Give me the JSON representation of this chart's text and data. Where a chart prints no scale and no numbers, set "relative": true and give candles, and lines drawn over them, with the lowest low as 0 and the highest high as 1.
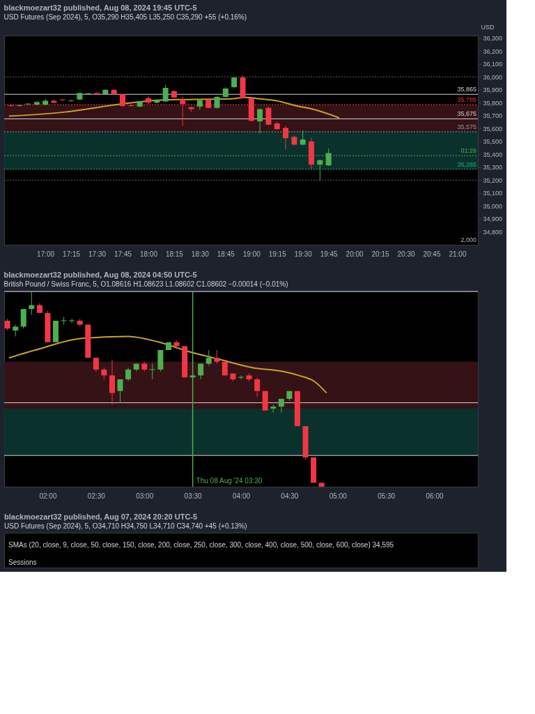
{
  "chart_data": [
    {
      "type": "candlestick",
      "title": "blackmoezart32 published, Aug 08, 2024 19:45 UTC-5",
      "subtitle": "USD Futures (Sep 2024), 5,  O35,290 H35,405 L35,250 C35,290 +55 (+0.16%)",
      "x": [
        16.667,
        16.75,
        16.833,
        16.917,
        17,
        17.083,
        17.167,
        17.25,
        17.333,
        17.417,
        17.5,
        17.583,
        17.667,
        17.75,
        17.833,
        17.917,
        18,
        18.083,
        18.167,
        18.25,
        18.333,
        18.417,
        18.5,
        18.583,
        18.667,
        18.75,
        18.833,
        18.917,
        19,
        19.083,
        19.167,
        19.25,
        19.333,
        19.417,
        19.5,
        19.583,
        19.667,
        19.75
      ],
      "ohlc": [
        [
          35780,
          35785,
          35770,
          35775
        ],
        [
          35775,
          35785,
          35770,
          35780
        ],
        [
          35790,
          35795,
          35785,
          35790
        ],
        [
          35785,
          35810,
          35780,
          35805
        ],
        [
          35785,
          35830,
          35780,
          35815
        ],
        [
          35815,
          35825,
          35795,
          35800
        ],
        [
          35825,
          35830,
          35815,
          35820
        ],
        [
          35815,
          35820,
          35810,
          35815
        ],
        [
          35825,
          35880,
          35820,
          35875
        ],
        [
          35870,
          35875,
          35865,
          35870
        ],
        [
          35875,
          35880,
          35860,
          35865
        ],
        [
          35865,
          35905,
          35860,
          35900
        ],
        [
          35900,
          35905,
          35860,
          35865
        ],
        [
          35865,
          35870,
          35765,
          35775
        ],
        [
          35780,
          35785,
          35770,
          35775
        ],
        [
          35770,
          35815,
          35765,
          35810
        ],
        [
          35835,
          35850,
          35790,
          35800
        ],
        [
          35800,
          35825,
          35795,
          35820
        ],
        [
          35810,
          35940,
          35805,
          35915
        ],
        [
          35890,
          35895,
          35835,
          35840
        ],
        [
          35825,
          35845,
          35620,
          35790
        ],
        [
          35765,
          35770,
          35730,
          35750
        ],
        [
          35770,
          35825,
          35745,
          35820
        ],
        [
          35825,
          35830,
          35755,
          35760
        ],
        [
          35760,
          35850,
          35755,
          35845
        ],
        [
          35845,
          35920,
          35840,
          35910
        ],
        [
          35920,
          36000,
          35915,
          35995
        ],
        [
          35995,
          36010,
          35830,
          35835
        ],
        [
          35835,
          35845,
          35655,
          35660
        ],
        [
          35655,
          35755,
          35560,
          35750
        ],
        [
          35760,
          35770,
          35625,
          35630
        ],
        [
          35640,
          35650,
          35590,
          35595
        ],
        [
          35605,
          35620,
          35435,
          35525
        ],
        [
          35535,
          35545,
          35470,
          35475
        ],
        [
          35475,
          35585,
          35470,
          35515
        ],
        [
          35500,
          35530,
          35290,
          35320
        ],
        [
          35320,
          35360,
          35200,
          35355
        ],
        [
          35315,
          35445,
          35310,
          35410
        ]
      ],
      "series": [
        {
          "type": "line",
          "color": "#c9a227",
          "x": [
            16.647,
            17.192,
            17.769,
            18.154,
            18.474,
            18.795,
            18.955,
            19.083,
            19.244,
            19.436,
            19.596,
            19.853
          ],
          "values": [
            35696,
            35728,
            35793,
            35822,
            35826,
            35830,
            35841,
            35830,
            35815,
            35776,
            35750,
            35683
          ]
        }
      ],
      "xlim": [
        16.6,
        21.2
      ],
      "xticks": [
        {
          "value": 17,
          "label": "17:00"
        },
        {
          "value": 17.25,
          "label": "17:15"
        },
        {
          "value": 17.5,
          "label": "17:30"
        },
        {
          "value": 17.75,
          "label": "17:45"
        },
        {
          "value": 18,
          "label": "18:00"
        },
        {
          "value": 18.25,
          "label": "18:15"
        },
        {
          "value": 18.5,
          "label": "18:30"
        },
        {
          "value": 18.75,
          "label": "18:45"
        },
        {
          "value": 19,
          "label": "19:00"
        },
        {
          "value": 19.25,
          "label": "19:15"
        },
        {
          "value": 19.5,
          "label": "19:30"
        },
        {
          "value": 19.75,
          "label": "19:45"
        },
        {
          "value": 20,
          "label": "20:00"
        },
        {
          "value": 20.25,
          "label": "20:15"
        },
        {
          "value": 20.5,
          "label": "20:30"
        },
        {
          "value": 20.75,
          "label": "20:45"
        },
        {
          "value": 21,
          "label": "21:00"
        }
      ],
      "ylim": [
        34700,
        36320
      ],
      "yticks": [
        {
          "value": 34800,
          "label": "34,800"
        },
        {
          "value": 34900,
          "label": "34,900"
        },
        {
          "value": 35000,
          "label": "35,000"
        },
        {
          "value": 35100,
          "label": "35,100"
        },
        {
          "value": 35200,
          "label": "35,200"
        },
        {
          "value": 35300,
          "label": "35,300"
        },
        {
          "value": 35400,
          "label": "35,400"
        },
        {
          "value": 35500,
          "label": "35,500"
        },
        {
          "value": 35600,
          "label": "35,600"
        },
        {
          "value": 35700,
          "label": "35,700"
        },
        {
          "value": 35800,
          "label": "35,800"
        },
        {
          "value": 35900,
          "label": "35,900"
        },
        {
          "value": 36000,
          "label": "36,000"
        },
        {
          "value": 36100,
          "label": "36,100"
        },
        {
          "value": 36200,
          "label": "36,200"
        },
        {
          "value": 36300,
          "label": "36,300"
        }
      ],
      "ylabel": "USD",
      "bands": [
        {
          "axis": "y",
          "from": 35575,
          "to": 35785,
          "color": "#3a1417"
        },
        {
          "axis": "y",
          "from": 35285,
          "to": 35575,
          "color": "#0c3632"
        }
      ],
      "ref_lines": [
        {
          "axis": "y",
          "value": 35865,
          "label": "35,865",
          "color": "#d1d4dc",
          "line_style": "solid"
        },
        {
          "axis": "y",
          "value": 35675,
          "label": "35,675",
          "color": "#d1d4dc",
          "line_style": "solid"
        },
        {
          "axis": "y",
          "value": 35785,
          "label": "35,785",
          "color": "#f23645",
          "line_style": "dotted"
        },
        {
          "axis": "y",
          "value": 35575,
          "label": "35,575",
          "color": "#9598a1",
          "line_style": "dotted"
        },
        {
          "axis": "y",
          "value": 35390,
          "color": "#4caf50",
          "line_style": "dotted"
        },
        {
          "axis": "y",
          "value": 35285,
          "label": "35,285",
          "color": "#22ab94",
          "line_style": "dotted"
        },
        {
          "axis": "y",
          "value": 36000,
          "color": "#5d606b",
          "line_style": "dotted"
        },
        {
          "axis": "y",
          "value": 35200,
          "color": "#5d606b",
          "line_style": "dotted"
        }
      ],
      "annotations": [
        "2,000",
        {
          "text": "01:26",
          "x": 21.2,
          "y": 35390
        }
      ]
    },
    {
      "type": "candlestick",
      "relative": true,
      "title": "blackmoezart32 published, Aug 08, 2024 04:50 UTC-5",
      "subtitle": "British Pound / Swiss Franc, 5,  O1.08616 H1.08623 L1.08602 C1.08602 −0.00014 (−0.01%)",
      "x": [
        1.583,
        1.667,
        1.75,
        1.833,
        1.917,
        2,
        2.083,
        2.167,
        2.25,
        2.333,
        2.417,
        2.5,
        2.583,
        2.667,
        2.75,
        2.833,
        2.917,
        3,
        3.083,
        3.167,
        3.25,
        3.333,
        3.417,
        3.5,
        3.583,
        3.667,
        3.75,
        3.833,
        3.917,
        4,
        4.083,
        4.167,
        4.25,
        4.333,
        4.417,
        4.5,
        4.583,
        4.667,
        4.75,
        4.833
      ],
      "ohlc": [
        [
          0.85,
          0.86,
          0.8,
          0.81
        ],
        [
          0.8,
          0.83,
          0.77,
          0.82
        ],
        [
          0.82,
          0.91,
          0.81,
          0.91
        ],
        [
          0.91,
          1.0,
          0.88,
          0.93
        ],
        [
          0.93,
          0.94,
          0.89,
          0.89
        ],
        [
          0.89,
          0.9,
          0.74,
          0.74
        ],
        [
          0.74,
          0.85,
          0.74,
          0.85
        ],
        [
          0.85,
          0.87,
          0.83,
          0.85
        ],
        [
          0.85,
          0.86,
          0.84,
          0.85
        ],
        [
          0.85,
          0.86,
          0.82,
          0.83
        ],
        [
          0.83,
          0.83,
          0.66,
          0.66
        ],
        [
          0.66,
          0.66,
          0.59,
          0.6
        ],
        [
          0.6,
          0.61,
          0.55,
          0.57
        ],
        [
          0.57,
          0.65,
          0.42,
          0.48
        ],
        [
          0.49,
          0.55,
          0.43,
          0.55
        ],
        [
          0.55,
          0.61,
          0.54,
          0.6
        ],
        [
          0.6,
          0.63,
          0.59,
          0.63
        ],
        [
          0.63,
          0.64,
          0.59,
          0.6
        ],
        [
          0.6,
          0.63,
          0.55,
          0.6
        ],
        [
          0.6,
          0.7,
          0.59,
          0.7
        ],
        [
          0.7,
          0.74,
          0.7,
          0.74
        ],
        [
          0.74,
          0.75,
          0.71,
          0.72
        ],
        [
          0.72,
          0.72,
          0.56,
          0.56
        ],
        [
          0.56,
          0.57,
          0.55,
          0.57
        ],
        [
          0.57,
          0.63,
          0.55,
          0.63
        ],
        [
          0.63,
          0.7,
          0.62,
          0.66
        ],
        [
          0.66,
          0.7,
          0.63,
          0.64
        ],
        [
          0.64,
          0.64,
          0.57,
          0.57
        ],
        [
          0.58,
          0.58,
          0.54,
          0.55
        ],
        [
          0.56,
          0.57,
          0.55,
          0.56
        ],
        [
          0.57,
          0.58,
          0.54,
          0.55
        ],
        [
          0.55,
          0.56,
          0.46,
          0.49
        ],
        [
          0.49,
          0.49,
          0.39,
          0.39
        ],
        [
          0.4,
          0.42,
          0.38,
          0.41
        ],
        [
          0.41,
          0.45,
          0.38,
          0.45
        ],
        [
          0.45,
          0.49,
          0.44,
          0.49
        ],
        [
          0.49,
          0.49,
          0.31,
          0.31
        ],
        [
          0.31,
          0.31,
          0.14,
          0.15
        ],
        [
          0.15,
          0.15,
          0.02,
          0.02
        ],
        [
          0.02,
          0.02,
          0.0,
          0.0
        ]
      ],
      "series": [
        {
          "type": "line",
          "color": "#c9a227",
          "x": [
            1.599,
            1.872,
            2.353,
            2.833,
            3.154,
            3.474,
            3.795,
            4.115,
            4.436,
            4.596,
            4.756,
            4.885
          ],
          "values": [
            0.66,
            0.7,
            0.76,
            0.77,
            0.74,
            0.69,
            0.65,
            0.61,
            0.59,
            0.57,
            0.54,
            0.48
          ]
        }
      ],
      "xlim": [
        1.55,
        6.45
      ],
      "xticks": [
        {
          "value": 2,
          "label": "02:00"
        },
        {
          "value": 2.5,
          "label": "02:30"
        },
        {
          "value": 3,
          "label": "03:00"
        },
        {
          "value": 3.5,
          "label": "03:30"
        },
        {
          "value": 4,
          "label": "04:00"
        },
        {
          "value": 4.5,
          "label": "04:30"
        },
        {
          "value": 5,
          "label": "05:00"
        },
        {
          "value": 5.5,
          "label": "05:30"
        },
        {
          "value": 6,
          "label": "06:00"
        }
      ],
      "bands": [
        {
          "axis": "y",
          "from": 0.4,
          "to": 0.64,
          "color": "#3a1417"
        },
        {
          "axis": "y",
          "from": 0.16,
          "to": 0.4,
          "color": "#0c3632"
        }
      ],
      "ref_lines": [
        {
          "axis": "y",
          "value": 1.0,
          "color": "#d1d4dc",
          "line_style": "solid"
        },
        {
          "axis": "y",
          "value": 0.43,
          "color": "#d1d4dc",
          "line_style": "solid"
        },
        {
          "axis": "y",
          "value": 0.16,
          "color": "#d1d4dc",
          "line_style": "solid"
        },
        {
          "axis": "x",
          "value": 3.5,
          "label": "Thu 08 Aug '24  03:30",
          "color": "#4caf50",
          "line_style": "solid"
        }
      ]
    },
    {
      "type": "other",
      "title": "blackmoezart32 published, Aug 07, 2024 20:20 UTC-5",
      "subtitle": "USD Futures (Sep 2024), 5,  O34,710 H34,750 L34,710 C34,740 +45 (+0.13%)",
      "annotations": [
        "SMAs (20, close, 9, close, 50, close, 150, close, 200, close, 250, close, 300, close, 400, close, 500, close, 600, close) 34,595",
        "Sessions"
      ]
    }
  ]
}
